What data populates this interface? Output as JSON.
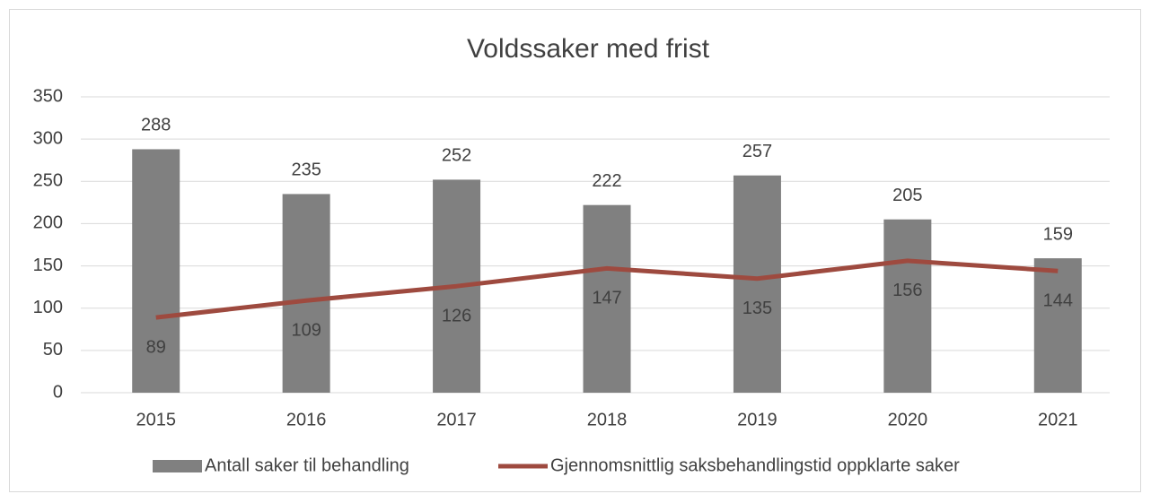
{
  "chart_data": {
    "type": "bar",
    "title": "Voldssaker med frist",
    "categories": [
      "2015",
      "2016",
      "2017",
      "2018",
      "2019",
      "2020",
      "2021"
    ],
    "series": [
      {
        "name": "Antall saker til behandling",
        "type": "bar",
        "color": "#808080",
        "values": [
          288,
          235,
          252,
          222,
          257,
          205,
          159
        ]
      },
      {
        "name": "Gjennomsnittlig saksbehandlingstid oppklarte saker",
        "type": "line",
        "color": "#9e4a3f",
        "values": [
          89,
          109,
          126,
          147,
          135,
          156,
          144
        ]
      }
    ],
    "ylim": [
      0,
      350
    ],
    "yticks": [
      0,
      50,
      100,
      150,
      200,
      250,
      300,
      350
    ],
    "grid": true,
    "legend": "bottom"
  }
}
